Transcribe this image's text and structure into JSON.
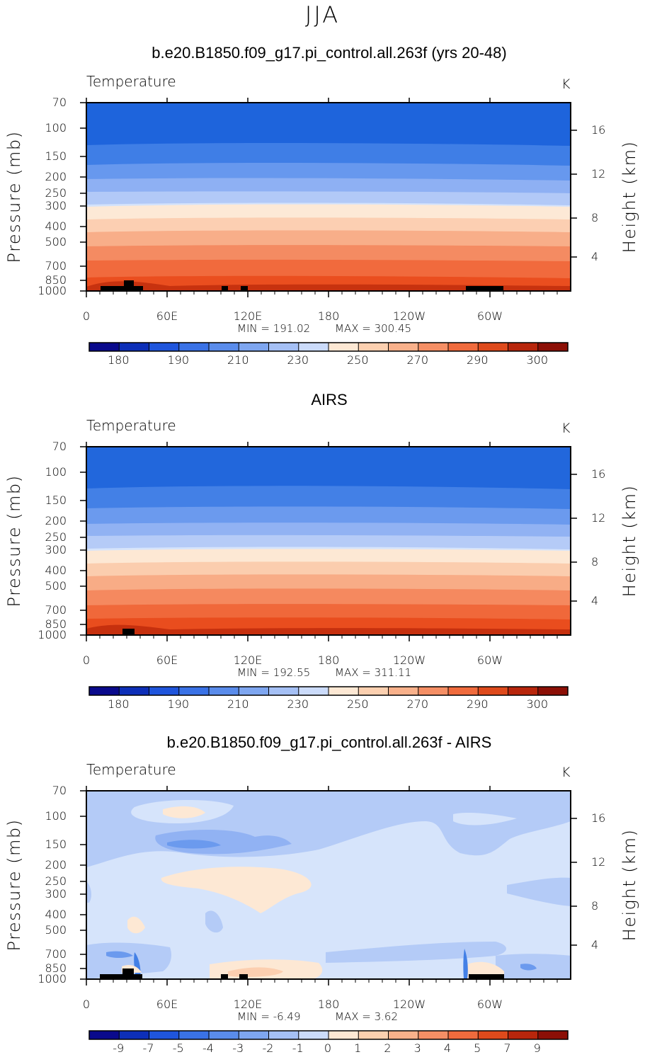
{
  "season_title": "JJA",
  "chart_data": [
    {
      "type": "heatmap",
      "title": "b.e20.B1850.f09_g17.pi_control.all.263f (yrs 20-48)",
      "variable": "Temperature",
      "units": "K",
      "ylabel": "Pressure (mb)",
      "ylabel_right": "Height (km)",
      "x_ticks": [
        "0",
        "60E",
        "120E",
        "180",
        "120W",
        "60W"
      ],
      "y_ticks": [
        "70",
        "100",
        "150",
        "200",
        "250",
        "300",
        "400",
        "500",
        "700",
        "850",
        "1000"
      ],
      "y_ticks_right": [
        "16",
        "12",
        "8",
        "4"
      ],
      "min_label": "MIN = 191.02",
      "max_label": "MAX = 300.45",
      "colorbar_ticks": [
        "180",
        "190",
        "210",
        "230",
        "250",
        "270",
        "290",
        "300"
      ],
      "colors": [
        "#0d47b8",
        "#1e64dc",
        "#3f7ee6",
        "#6798ee",
        "#8eb0f3",
        "#b2c9f7",
        "#d3e2fb",
        "#fde9d6",
        "#fccfb2",
        "#f8ae89",
        "#f48b62",
        "#f16a3d",
        "#ea4e1f",
        "#c7320f"
      ]
    },
    {
      "type": "heatmap",
      "title": "AIRS",
      "variable": "Temperature",
      "units": "K",
      "ylabel": "Pressure (mb)",
      "ylabel_right": "Height (km)",
      "x_ticks": [
        "0",
        "60E",
        "120E",
        "180",
        "120W",
        "60W"
      ],
      "y_ticks": [
        "70",
        "100",
        "150",
        "200",
        "250",
        "300",
        "400",
        "500",
        "700",
        "850",
        "1000"
      ],
      "y_ticks_right": [
        "16",
        "12",
        "8",
        "4"
      ],
      "min_label": "MIN = 192.55",
      "max_label": "MAX = 311.11",
      "colorbar_ticks": [
        "180",
        "190",
        "210",
        "230",
        "250",
        "270",
        "290",
        "300"
      ],
      "colors": [
        "#1150c2",
        "#2267dc",
        "#4380e6",
        "#6b9aee",
        "#91b2f3",
        "#b5cbf7",
        "#d6e4fb",
        "#fde8d4",
        "#fbcdae",
        "#f8ac86",
        "#f5895f",
        "#f0683a",
        "#e94d1e",
        "#c6300e"
      ]
    },
    {
      "type": "heatmap",
      "title": "b.e20.B1850.f09_g17.pi_control.all.263f - AIRS",
      "variable": "Temperature",
      "units": "K",
      "ylabel": "Pressure (mb)",
      "ylabel_right": "Height (km)",
      "x_ticks": [
        "0",
        "60E",
        "120E",
        "180",
        "120W",
        "60W"
      ],
      "y_ticks": [
        "70",
        "100",
        "150",
        "200",
        "250",
        "300",
        "400",
        "500",
        "700",
        "850",
        "1000"
      ],
      "y_ticks_right": [
        "16",
        "12",
        "8",
        "4"
      ],
      "min_label": "MIN = -6.49",
      "max_label": "MAX = 3.62",
      "colorbar_ticks": [
        "-9",
        "-7",
        "-5",
        "-4",
        "-3",
        "-2",
        "-1",
        "0",
        "1",
        "2",
        "3",
        "4",
        "5",
        "7",
        "9"
      ]
    }
  ]
}
